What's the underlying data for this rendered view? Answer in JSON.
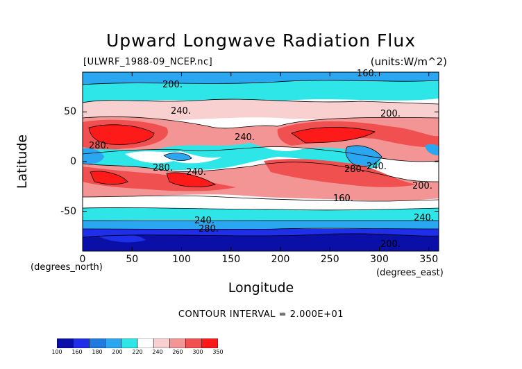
{
  "chart_data": {
    "type": "heatmap",
    "title": "Upward Longwave Radiation Flux",
    "subtitle_left": "[ULWRF_1988-09_NCEP.nc]",
    "subtitle_right": "(units:W/m^2)",
    "xlabel": "Longitude",
    "ylabel": "Latitude",
    "x_unit_label": "(degrees_east)",
    "y_unit_label": "(degrees_north)",
    "xlim": [
      0,
      360
    ],
    "ylim": [
      -90,
      90
    ],
    "x_ticks": [
      0,
      50,
      100,
      150,
      200,
      250,
      300,
      350
    ],
    "y_ticks": [
      50,
      0,
      -50
    ],
    "contour_interval_text": "CONTOUR INTERVAL = 2.000E+01",
    "colorbar": {
      "levels": [
        "100",
        "160",
        "180",
        "200",
        "220",
        "240",
        "260",
        "300",
        "350"
      ],
      "colors": [
        "#0a0fa8",
        "#1f2ee8",
        "#1f7ae0",
        "#2aa7f0",
        "#2ee6e8",
        "#ffffff",
        "#f8d0d0",
        "#f39595",
        "#f05050",
        "#ff1a1a"
      ]
    },
    "contour_labels": [
      "200.",
      "240.",
      "280.",
      "240.",
      "280.",
      "240.",
      "280.",
      "240.",
      "200.",
      "160.",
      "200.",
      "240.",
      "280.",
      "160.",
      "240.",
      "200."
    ]
  }
}
